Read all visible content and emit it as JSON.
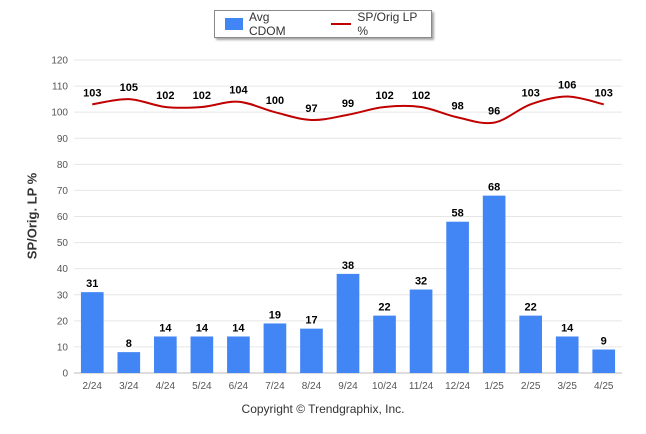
{
  "chart_data": {
    "type": "bar",
    "categories": [
      "2/24",
      "3/24",
      "4/24",
      "5/24",
      "6/24",
      "7/24",
      "8/24",
      "9/24",
      "10/24",
      "11/24",
      "12/24",
      "1/25",
      "2/25",
      "3/25",
      "4/25"
    ],
    "series": [
      {
        "name": "Avg CDOM",
        "type": "bar",
        "color": "#4285f4",
        "values": [
          31,
          8,
          14,
          14,
          14,
          19,
          17,
          38,
          22,
          32,
          58,
          68,
          22,
          14,
          9
        ]
      },
      {
        "name": "SP/Orig LP %",
        "type": "line",
        "color": "#c00000",
        "values": [
          103,
          105,
          102,
          102,
          104,
          100,
          97,
          99,
          102,
          102,
          98,
          96,
          103,
          106,
          103
        ]
      }
    ],
    "ylabel": "SP/Orig. LP %",
    "yticks": [
      0,
      10,
      20,
      30,
      40,
      50,
      60,
      70,
      80,
      90,
      100,
      110,
      120
    ],
    "ylim": [
      0,
      120
    ],
    "grid": true,
    "legend": "top-center"
  },
  "footer": "Copyright © Trendgraphix, Inc."
}
